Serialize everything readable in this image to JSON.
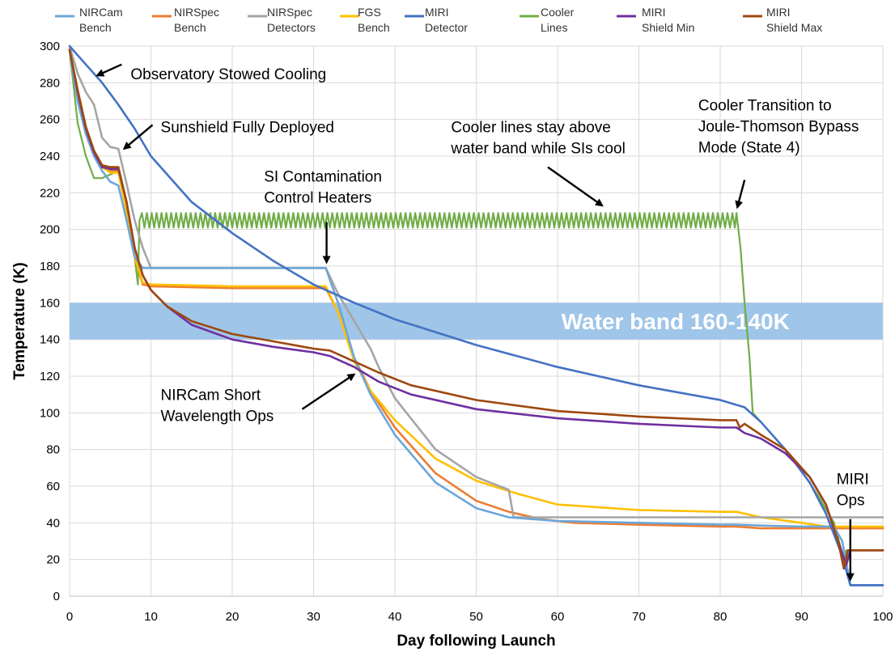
{
  "chart_data": {
    "type": "line",
    "xlabel": "Day following Launch",
    "ylabel": "Temperature (K)",
    "xlim": [
      0,
      100
    ],
    "ylim": [
      0,
      300
    ],
    "xticks": [
      0,
      10,
      20,
      30,
      40,
      50,
      60,
      70,
      80,
      90,
      100
    ],
    "yticks": [
      0,
      20,
      40,
      60,
      80,
      100,
      120,
      140,
      160,
      180,
      200,
      220,
      240,
      260,
      280,
      300
    ],
    "grid": true,
    "legend_position": "top",
    "band": {
      "label": "Water band 160-140K",
      "y_range": [
        140,
        160
      ],
      "color": "#9fc5e8"
    },
    "series": [
      {
        "name": [
          "NIRCam",
          "Bench"
        ],
        "color": "#6ca6d8",
        "points": [
          [
            0,
            298
          ],
          [
            1,
            270
          ],
          [
            2,
            252
          ],
          [
            3,
            240
          ],
          [
            4,
            232
          ],
          [
            5,
            226
          ],
          [
            6,
            224
          ],
          [
            7,
            205
          ],
          [
            8,
            185
          ],
          [
            9,
            179
          ],
          [
            10,
            179
          ],
          [
            20,
            179
          ],
          [
            31.5,
            179
          ],
          [
            33,
            160
          ],
          [
            35,
            130
          ],
          [
            37,
            110
          ],
          [
            40,
            88
          ],
          [
            45,
            62
          ],
          [
            50,
            48
          ],
          [
            54,
            43
          ],
          [
            60,
            41
          ],
          [
            70,
            40
          ],
          [
            80,
            39
          ],
          [
            82,
            39
          ],
          [
            85,
            38.5
          ],
          [
            90,
            38
          ],
          [
            94,
            38
          ],
          [
            95,
            30
          ],
          [
            96,
            6
          ],
          [
            100,
            6
          ]
        ]
      },
      {
        "name": [
          "NIRSpec",
          "Bench"
        ],
        "color": "#ed7d31",
        "points": [
          [
            0,
            298
          ],
          [
            1,
            275
          ],
          [
            2,
            255
          ],
          [
            3,
            242
          ],
          [
            4,
            234
          ],
          [
            5,
            232
          ],
          [
            6,
            232
          ],
          [
            7,
            210
          ],
          [
            8,
            185
          ],
          [
            9,
            170
          ],
          [
            10,
            169
          ],
          [
            20,
            168
          ],
          [
            31.5,
            168
          ],
          [
            33,
            155
          ],
          [
            35,
            130
          ],
          [
            37,
            112
          ],
          [
            40,
            92
          ],
          [
            45,
            67
          ],
          [
            50,
            52
          ],
          [
            54,
            46
          ],
          [
            58,
            42
          ],
          [
            62,
            40
          ],
          [
            70,
            39
          ],
          [
            80,
            38
          ],
          [
            82,
            38
          ],
          [
            85,
            37
          ],
          [
            90,
            37
          ],
          [
            100,
            37
          ]
        ]
      },
      {
        "name": [
          "NIRSpec",
          "Detectors"
        ],
        "color": "#a5a5a5",
        "points": [
          [
            0,
            300
          ],
          [
            1,
            285
          ],
          [
            2,
            275
          ],
          [
            3,
            268
          ],
          [
            4,
            250
          ],
          [
            5,
            245
          ],
          [
            6,
            244
          ],
          [
            7,
            225
          ],
          [
            8,
            205
          ],
          [
            9,
            190
          ],
          [
            10,
            179
          ],
          [
            20,
            179
          ],
          [
            31.5,
            179
          ],
          [
            33,
            165
          ],
          [
            35,
            150
          ],
          [
            37,
            135
          ],
          [
            38,
            125
          ],
          [
            40,
            108
          ],
          [
            45,
            80
          ],
          [
            50,
            65
          ],
          [
            54,
            58
          ],
          [
            54.6,
            43
          ],
          [
            60,
            43
          ],
          [
            70,
            43
          ],
          [
            80,
            43
          ],
          [
            85,
            43
          ],
          [
            90,
            43
          ],
          [
            100,
            43
          ]
        ]
      },
      {
        "name": [
          "FGS",
          "Bench"
        ],
        "color": "#ffc000",
        "points": [
          [
            0,
            298
          ],
          [
            1,
            276
          ],
          [
            2,
            256
          ],
          [
            3,
            241
          ],
          [
            4,
            234
          ],
          [
            5,
            231
          ],
          [
            6,
            231
          ],
          [
            7,
            210
          ],
          [
            8,
            185
          ],
          [
            9,
            171
          ],
          [
            10,
            170
          ],
          [
            20,
            169
          ],
          [
            31.5,
            169
          ],
          [
            33,
            155
          ],
          [
            35,
            128
          ],
          [
            37,
            112
          ],
          [
            40,
            96
          ],
          [
            45,
            75
          ],
          [
            50,
            63
          ],
          [
            55,
            56
          ],
          [
            60,
            50
          ],
          [
            70,
            47
          ],
          [
            80,
            46
          ],
          [
            82,
            46
          ],
          [
            85,
            43
          ],
          [
            90,
            40
          ],
          [
            93,
            38
          ],
          [
            100,
            38
          ]
        ]
      },
      {
        "name": [
          "MIRI",
          "Detector"
        ],
        "color": "#4472c4",
        "points": [
          [
            0,
            300
          ],
          [
            2,
            290
          ],
          [
            4,
            280
          ],
          [
            6,
            268
          ],
          [
            8,
            255
          ],
          [
            10,
            240
          ],
          [
            15,
            215
          ],
          [
            20,
            198
          ],
          [
            25,
            183
          ],
          [
            30,
            170
          ],
          [
            35,
            160
          ],
          [
            40,
            151
          ],
          [
            50,
            137
          ],
          [
            60,
            125
          ],
          [
            70,
            115
          ],
          [
            80,
            107
          ],
          [
            83,
            103
          ],
          [
            85,
            95
          ],
          [
            88,
            80
          ],
          [
            91,
            62
          ],
          [
            93,
            45
          ],
          [
            95,
            22
          ],
          [
            96,
            6
          ],
          [
            100,
            6
          ]
        ]
      },
      {
        "name": [
          "Cooler",
          "Lines"
        ],
        "color": "#70ad47",
        "points": [
          [
            0,
            298
          ],
          [
            1,
            258
          ],
          [
            2,
            240
          ],
          [
            3,
            228
          ],
          [
            4,
            228
          ],
          [
            5,
            230
          ],
          [
            6,
            232
          ],
          [
            7,
            212
          ],
          [
            8,
            185
          ],
          [
            8.4,
            170
          ],
          [
            8.6,
            205
          ],
          [
            82,
            205
          ],
          [
            82.5,
            190
          ],
          [
            83,
            160
          ],
          [
            83.6,
            130
          ],
          [
            84,
            100
          ],
          [
            86,
            90
          ],
          [
            89,
            75
          ],
          [
            92,
            55
          ],
          [
            94,
            40
          ],
          [
            95.2,
            20
          ],
          [
            95.5,
            25
          ],
          [
            100,
            25
          ]
        ]
      },
      {
        "name": [
          "MIRI",
          "Shield Min"
        ],
        "color": "#7030a0",
        "points": [
          [
            0,
            298
          ],
          [
            1,
            275
          ],
          [
            2,
            255
          ],
          [
            3,
            242
          ],
          [
            4,
            234
          ],
          [
            5,
            233
          ],
          [
            6,
            233
          ],
          [
            7,
            215
          ],
          [
            8,
            190
          ],
          [
            9,
            175
          ],
          [
            10,
            167
          ],
          [
            12,
            158
          ],
          [
            15,
            148
          ],
          [
            20,
            140
          ],
          [
            25,
            136
          ],
          [
            30,
            133
          ],
          [
            32,
            131
          ],
          [
            35,
            125
          ],
          [
            38,
            117
          ],
          [
            42,
            110
          ],
          [
            50,
            102
          ],
          [
            60,
            97
          ],
          [
            70,
            94
          ],
          [
            80,
            92
          ],
          [
            82,
            92
          ],
          [
            83,
            89
          ],
          [
            85,
            86
          ],
          [
            88,
            78
          ],
          [
            91,
            65
          ],
          [
            93,
            50
          ],
          [
            94.5,
            30
          ],
          [
            95.5,
            17
          ],
          [
            96,
            25
          ],
          [
            100,
            25
          ]
        ]
      },
      {
        "name": [
          "MIRI",
          "Shield Max"
        ],
        "color": "#9e480e",
        "points": [
          [
            0,
            298
          ],
          [
            1,
            276
          ],
          [
            2,
            256
          ],
          [
            3,
            243
          ],
          [
            4,
            235
          ],
          [
            5,
            234
          ],
          [
            6,
            234
          ],
          [
            7,
            215
          ],
          [
            8,
            190
          ],
          [
            9,
            175
          ],
          [
            10,
            167
          ],
          [
            12,
            158
          ],
          [
            15,
            150
          ],
          [
            20,
            143
          ],
          [
            25,
            139
          ],
          [
            30,
            135
          ],
          [
            32,
            134
          ],
          [
            35,
            128
          ],
          [
            38,
            122
          ],
          [
            42,
            115
          ],
          [
            50,
            107
          ],
          [
            60,
            101
          ],
          [
            70,
            98
          ],
          [
            80,
            96
          ],
          [
            82,
            96
          ],
          [
            82.4,
            92
          ],
          [
            83,
            94
          ],
          [
            85,
            88
          ],
          [
            88,
            80
          ],
          [
            91,
            65
          ],
          [
            93,
            50
          ],
          [
            94.5,
            30
          ],
          [
            95.2,
            15
          ],
          [
            95.7,
            25
          ],
          [
            100,
            25
          ]
        ]
      }
    ],
    "annotations": [
      {
        "lines": [
          "Observatory Stowed Cooling"
        ],
        "x": 7.5,
        "y": 282,
        "arrow_from": [
          6.4,
          290
        ],
        "arrow_to": [
          3.4,
          284
        ]
      },
      {
        "lines": [
          "Sunshield Fully Deployed"
        ],
        "x": 11.2,
        "y": 253,
        "arrow_from": [
          10.2,
          257
        ],
        "arrow_to": [
          6.7,
          244
        ]
      },
      {
        "lines": [
          "SI Contamination",
          "Control Heaters"
        ],
        "x": 23.9,
        "y": 226,
        "arrow_from": [
          31.6,
          204
        ],
        "arrow_to": [
          31.6,
          182
        ]
      },
      {
        "lines": [
          "Cooler lines stay above",
          "water band while SIs cool"
        ],
        "x": 46.9,
        "y": 253,
        "arrow_from": [
          58.8,
          234
        ],
        "arrow_to": [
          65.5,
          213
        ]
      },
      {
        "lines": [
          "Cooler Transition to",
          "Joule-Thomson Bypass",
          "Mode (State 4)"
        ],
        "x": 77.3,
        "y": 265,
        "arrow_from": [
          83,
          227
        ],
        "arrow_to": [
          82.1,
          212
        ]
      },
      {
        "lines": [
          "NIRCam Short",
          "Wavelength Ops"
        ],
        "x": 11.2,
        "y": 107,
        "arrow_from": [
          28.6,
          102
        ],
        "arrow_to": [
          35,
          121
        ]
      },
      {
        "lines": [
          "MIRI",
          "Ops"
        ],
        "x": 94.3,
        "y": 61,
        "arrow_from": [
          96,
          42
        ],
        "arrow_to": [
          96,
          9
        ]
      }
    ]
  }
}
